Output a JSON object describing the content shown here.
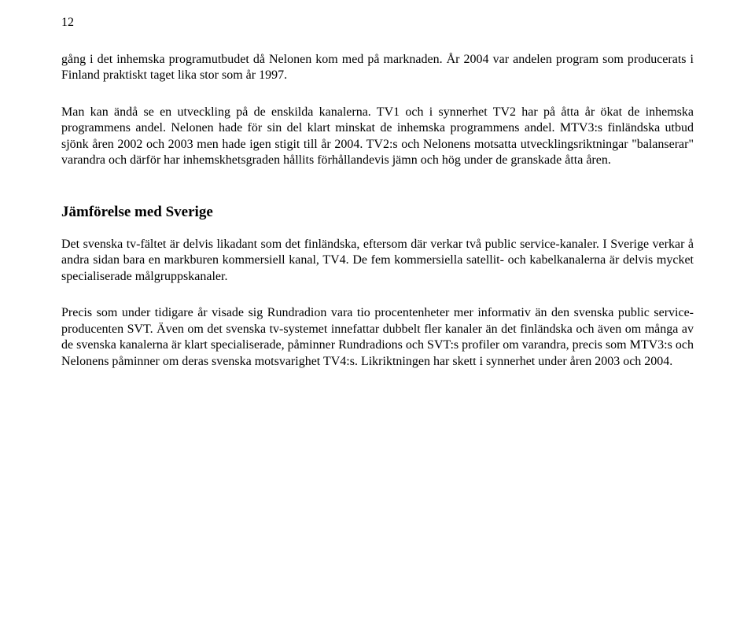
{
  "page_number": "12",
  "p1": "gång i det inhemska programutbudet då Nelonen kom med på marknaden. År 2004 var andelen program som producerats i Finland praktiskt taget lika stor som år 1997.",
  "p2": "Man kan ändå se en utveckling på de enskilda kanalerna. TV1 och i synnerhet TV2 har på åtta år ökat de inhemska programmens andel. Nelonen hade för sin del klart minskat de inhemska programmens andel. MTV3:s finländska utbud sjönk åren 2002 och 2003 men hade igen stigit till år 2004. TV2:s och Nelonens motsatta utvecklingsriktningar \"balanserar\" varandra och därför har inhemskhetsgraden hållits förhållandevis jämn och hög under de granskade åtta åren.",
  "heading": "Jämförelse med Sverige",
  "p3": "Det svenska tv-fältet är delvis likadant som det finländska, eftersom där verkar två public service-kanaler. I Sverige verkar å andra sidan bara en markburen kommersiell kanal, TV4. De fem kommersiella satellit- och kabelkanalerna är delvis mycket specialiserade målgruppskanaler.",
  "p4": "Precis som under tidigare år visade sig Rundradion vara tio procentenheter mer informativ än den svenska public service-producenten SVT. Även om det svenska tv-systemet innefattar dubbelt fler kanaler än det finländska och även om många av de svenska kanalerna är klart specialiserade, påminner Rundradions och SVT:s profiler om varandra, precis som MTV3:s och Nelonens påminner om deras svenska motsvarighet TV4:s. Likriktningen har skett i synnerhet under åren 2003 och 2004."
}
